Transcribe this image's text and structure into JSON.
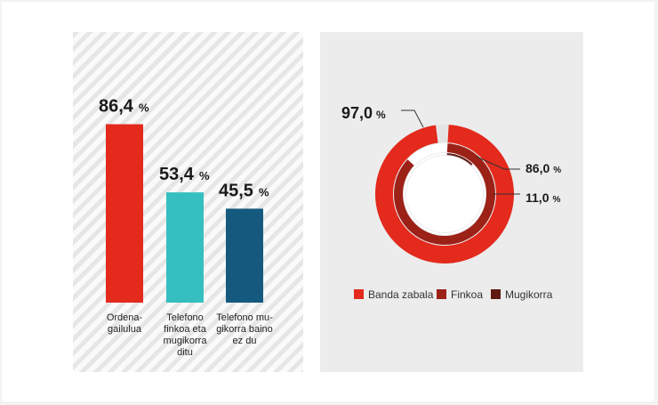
{
  "chart_data": [
    {
      "type": "bar",
      "categories": [
        [
          "Ordena-",
          "gailulua"
        ],
        [
          "Telefono",
          "finkoa eta",
          "mugikorra",
          "ditu"
        ],
        [
          "Telefono mu-",
          "gikorra baino",
          "ez du"
        ]
      ],
      "values": [
        86.4,
        53.4,
        45.5
      ],
      "value_labels": [
        "86,4",
        "53,4",
        "45,5"
      ],
      "unit": "%",
      "colors": [
        "#e32a1d",
        "#36bfc1",
        "#155a7e"
      ],
      "ylim": [
        0,
        100
      ]
    },
    {
      "type": "pie",
      "style": "concentric-donut",
      "series": [
        {
          "name": "Banda zabala",
          "value": 97.0,
          "label": "97,0",
          "color": "#e32a1d"
        },
        {
          "name": "Finkoa",
          "value": 86.0,
          "label": "86,0",
          "color": "#9c2117"
        },
        {
          "name": "Mugikorra",
          "value": 11.0,
          "label": "11,0",
          "color": "#5e1a12"
        }
      ],
      "unit": "%",
      "remainder_color": "#e4e4e4",
      "legend_position": "bottom"
    }
  ]
}
